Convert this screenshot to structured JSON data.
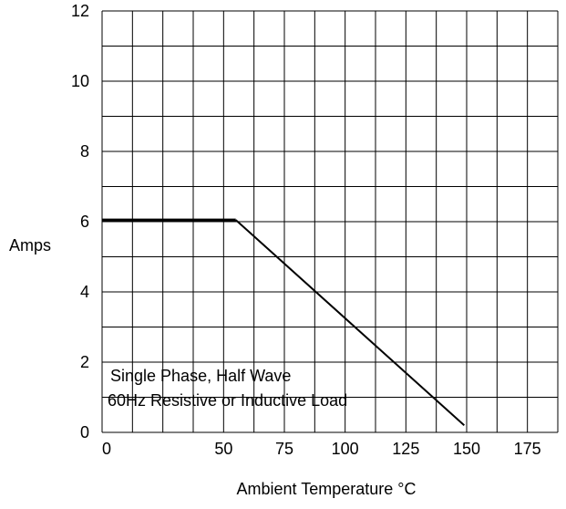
{
  "chart_data": {
    "type": "line",
    "title": "",
    "xlabel": "Ambient Temperature °C",
    "ylabel": "Amps",
    "xlim": [
      0,
      187.5
    ],
    "ylim": [
      0,
      12
    ],
    "x_ticks": [
      0,
      50,
      75,
      100,
      125,
      150,
      175
    ],
    "x_tick_labels": [
      "0",
      "50",
      "75",
      "100",
      "125",
      "150",
      "175"
    ],
    "y_ticks": [
      0,
      2,
      4,
      6,
      8,
      10,
      12
    ],
    "y_tick_labels": [
      "0",
      "2",
      "4",
      "6",
      "8",
      "10",
      "12"
    ],
    "grid": true,
    "grid_x_step": 12.5,
    "grid_y_step": 1,
    "series": [
      {
        "x": [
          0,
          55,
          149
        ],
        "y": [
          6.05,
          6.05,
          0.2
        ]
      }
    ],
    "annotations": [
      "Single Phase, Half Wave",
      "60Hz Resistive or Inductive Load"
    ],
    "colors": {
      "line": "#000000",
      "grid": "#000000",
      "background": "#ffffff"
    }
  }
}
